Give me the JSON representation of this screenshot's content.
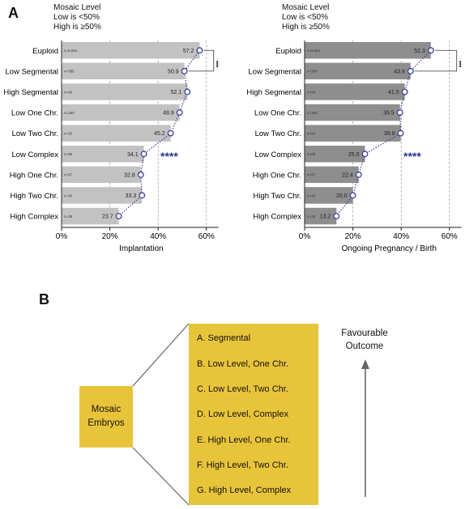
{
  "panel_a_label": "A",
  "panel_b_label": "B",
  "mosaic_note_left": {
    "title": "Mosaic Level",
    "low": "Low is <50%",
    "high": "High is ≥50%"
  },
  "mosaic_note_right": {
    "title": "Mosaic Level",
    "low": "Low is <50%",
    "high": "High is ≥50%"
  },
  "chart_data": [
    {
      "type": "bar",
      "categories": [
        "Euploid",
        "Low Segmental",
        "High Segmental",
        "Low One Chr.",
        "Low Two Chr.",
        "Low Complex",
        "High One Chr.",
        "High Two Chr.",
        "High Complex"
      ],
      "n_labels": [
        "n=5,561",
        "n=385",
        "n=94",
        "n=190",
        "n=93",
        "n=86",
        "n=67",
        "n=30",
        "n=38"
      ],
      "values": [
        57.2,
        50.9,
        52.1,
        48.9,
        45.2,
        34.1,
        32.8,
        33.3,
        23.7
      ],
      "xlabel": "Implantation",
      "xticks": [
        "0%",
        "20%",
        "40%",
        "60%"
      ],
      "xlim": [
        0,
        65
      ],
      "bar_color": "#c2c2c2",
      "marker_color": "#3a3f9a",
      "annotations": [
        "****",
        "***"
      ]
    },
    {
      "type": "bar",
      "categories": [
        "Euploid",
        "Low Segmental",
        "High Segmental",
        "Low One Chr.",
        "Low Two Chr.",
        "Low Complex",
        "High One Chr.",
        "High Two Chr.",
        "High Complex"
      ],
      "n_labels": [
        "n=5,561",
        "n=385",
        "n=94",
        "n=190",
        "n=93",
        "n=86",
        "n=67",
        "n=30",
        "n=38"
      ],
      "values": [
        52.3,
        43.9,
        41.5,
        39.5,
        39.8,
        25.0,
        22.4,
        20.0,
        13.2
      ],
      "xlabel": "Ongoing Pregnancy / Birth",
      "xticks": [
        "0%",
        "20%",
        "40%",
        "60%"
      ],
      "xlim": [
        0,
        65
      ],
      "bar_color": "#8e8e8e",
      "marker_color": "#3a3f9a",
      "annotations": [
        "****",
        "***"
      ]
    }
  ],
  "panel_b": {
    "mosaic_box": [
      "Mosaic",
      "Embryos"
    ],
    "levels": [
      "A. Segmental",
      "B. Low Level, One Chr.",
      "C. Low Level, Two Chr.",
      "D. Low Level, Complex",
      "E. High Level, One Chr.",
      "F. High Level, Two Chr.",
      "G. High Level, Complex"
    ],
    "favourable": [
      "Favourable",
      "Outcome"
    ],
    "box_color": "#e8c43a"
  }
}
